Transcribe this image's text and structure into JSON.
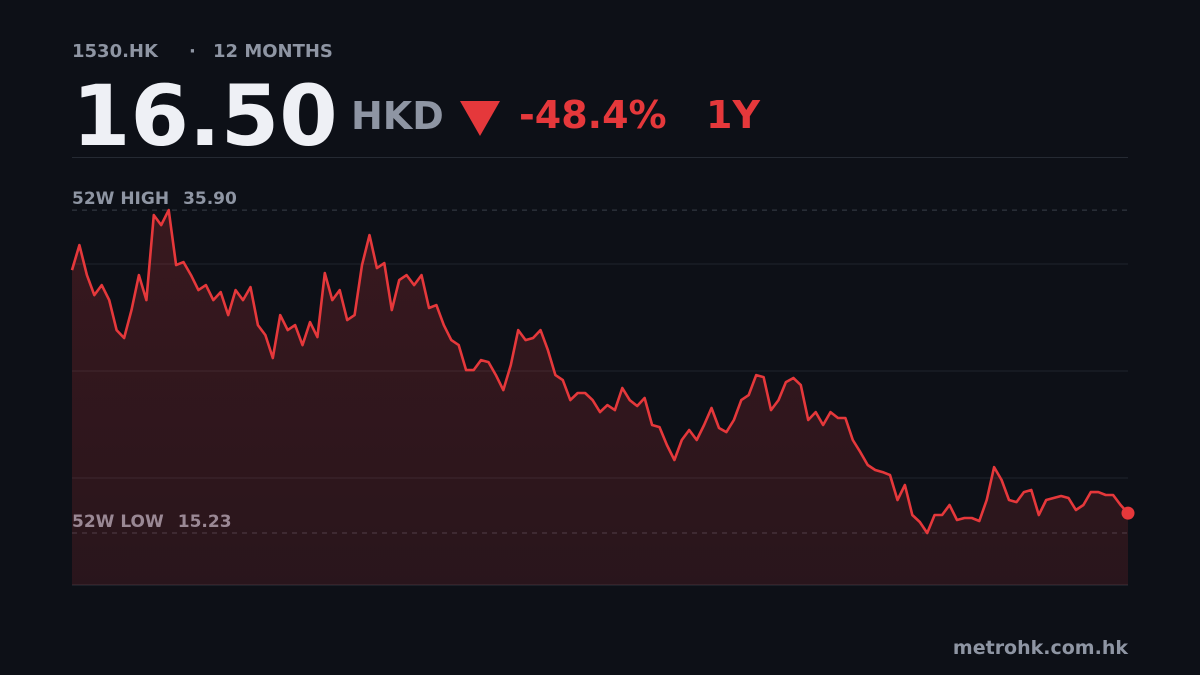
{
  "header": {
    "ticker": "1530.HK",
    "separator": "·",
    "period": "12 MONTHS",
    "price": "16.50",
    "currency": "HKD",
    "change": "-48.4%",
    "range": "1Y"
  },
  "chart_data": {
    "type": "line",
    "color": "#e5383b",
    "ylim": [
      11.9,
      39.3
    ],
    "reference_lines": [
      {
        "label": "52W HIGH",
        "value": 35.9,
        "value_label": "35.90"
      },
      {
        "label": "52W LOW",
        "value": 15.23,
        "value_label": "15.23"
      }
    ],
    "values": [
      32.06,
      33.66,
      31.74,
      30.46,
      31.1,
      30.14,
      28.22,
      27.71,
      29.5,
      31.74,
      30.14,
      35.58,
      34.94,
      35.9,
      32.38,
      32.57,
      31.74,
      30.78,
      31.1,
      30.14,
      30.65,
      29.18,
      30.78,
      30.14,
      30.97,
      28.54,
      27.9,
      26.43,
      29.18,
      28.22,
      28.54,
      27.26,
      28.73,
      27.77,
      31.87,
      30.14,
      30.78,
      28.86,
      29.18,
      32.38,
      34.3,
      32.19,
      32.51,
      29.5,
      31.42,
      31.74,
      31.1,
      31.74,
      29.63,
      29.82,
      28.54,
      27.58,
      27.26,
      25.66,
      25.66,
      26.3,
      26.17,
      25.34,
      24.38,
      25.98,
      28.22,
      27.58,
      27.71,
      28.22,
      26.94,
      25.34,
      25.02,
      23.74,
      24.19,
      24.19,
      23.74,
      22.97,
      23.42,
      23.1,
      24.51,
      23.74,
      23.36,
      23.87,
      22.14,
      22.01,
      20.86,
      19.9,
      21.18,
      21.82,
      21.18,
      22.14,
      23.23,
      21.95,
      21.69,
      22.46,
      23.74,
      24.06,
      25.34,
      25.21,
      23.1,
      23.74,
      24.89,
      25.15,
      24.7,
      22.46,
      22.97,
      22.14,
      22.97,
      22.59,
      22.59,
      21.18,
      20.41,
      19.58,
      19.26,
      19.13,
      18.94,
      17.34,
      18.3,
      16.38,
      15.93,
      15.23,
      16.38,
      16.38,
      17.02,
      16.06,
      16.19,
      16.19,
      16.0,
      17.34,
      19.45,
      18.62,
      17.34,
      17.21,
      17.85,
      17.98,
      16.38,
      17.34,
      17.47,
      17.6,
      17.47,
      16.7,
      17.02,
      17.85,
      17.85,
      17.66,
      17.66,
      17.02,
      16.5
    ]
  },
  "footer": {
    "source": "metrohk.com.hk"
  }
}
